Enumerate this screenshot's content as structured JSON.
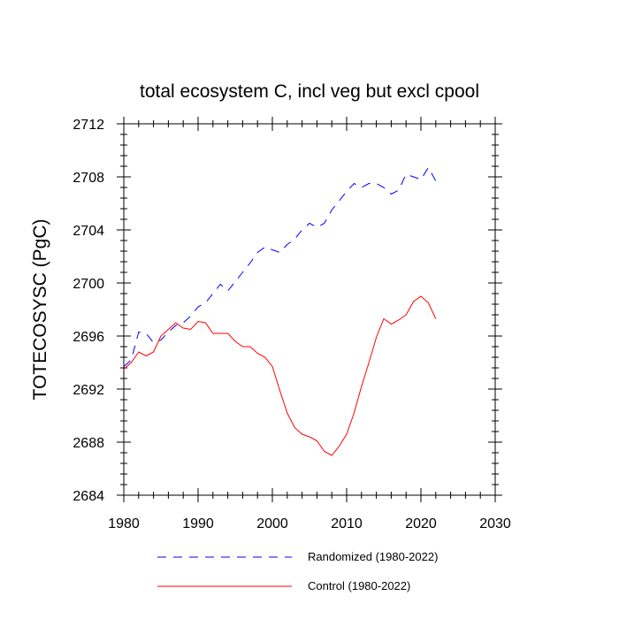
{
  "chart_data": {
    "type": "line",
    "title": "total ecosystem C, incl veg but excl cpool",
    "xlabel": "",
    "ylabel": "TOTECOSYSC  (PgC)",
    "xlim": [
      1980,
      2030
    ],
    "ylim": [
      2684,
      2712
    ],
    "xticks": [
      1980,
      1990,
      2000,
      2010,
      2020,
      2030
    ],
    "yticks": [
      2684,
      2688,
      2692,
      2696,
      2700,
      2704,
      2708,
      2712
    ],
    "xtick_labels": [
      "1980",
      "1990",
      "2000",
      "2010",
      "2020",
      "2030"
    ],
    "ytick_labels": [
      "2684",
      "2688",
      "2692",
      "2696",
      "2700",
      "2704",
      "2708",
      "2712"
    ],
    "x": [
      1980,
      1981,
      1982,
      1983,
      1984,
      1985,
      1986,
      1987,
      1988,
      1989,
      1990,
      1991,
      1992,
      1993,
      1994,
      1995,
      1996,
      1997,
      1998,
      1999,
      2000,
      2001,
      2002,
      2003,
      2004,
      2005,
      2006,
      2007,
      2008,
      2009,
      2010,
      2011,
      2012,
      2013,
      2014,
      2015,
      2016,
      2017,
      2018,
      2019,
      2020,
      2021,
      2022
    ],
    "series": [
      {
        "name": "Randomized (1980-2022)",
        "color": "#0000ff",
        "dash": "dashed",
        "values": [
          2693.7,
          2694.2,
          2696.3,
          2696.2,
          2695.5,
          2695.7,
          2696.3,
          2696.8,
          2697.0,
          2697.5,
          2698.2,
          2698.5,
          2699.2,
          2699.9,
          2699.4,
          2700.1,
          2700.8,
          2701.5,
          2702.3,
          2702.7,
          2702.5,
          2702.3,
          2702.9,
          2703.3,
          2704.0,
          2704.5,
          2704.2,
          2704.5,
          2705.5,
          2706.2,
          2706.9,
          2707.5,
          2707.2,
          2707.5,
          2707.5,
          2707.2,
          2706.7,
          2707.0,
          2708.2,
          2708.0,
          2707.8,
          2708.7,
          2707.7
        ]
      },
      {
        "name": "Control (1980-2022)",
        "color": "#ff0000",
        "dash": "solid",
        "values": [
          2693.5,
          2694.0,
          2694.8,
          2694.5,
          2694.8,
          2696.0,
          2696.5,
          2697.0,
          2696.6,
          2696.5,
          2697.1,
          2697.0,
          2696.2,
          2696.2,
          2696.2,
          2695.6,
          2695.2,
          2695.2,
          2694.7,
          2694.4,
          2693.7,
          2691.9,
          2690.2,
          2689.1,
          2688.6,
          2688.4,
          2688.1,
          2687.3,
          2687.0,
          2687.7,
          2688.6,
          2690.2,
          2692.2,
          2694.0,
          2695.9,
          2697.3,
          2696.9,
          2697.2,
          2697.6,
          2698.6,
          2699.0,
          2698.5,
          2697.3
        ]
      }
    ],
    "legend_position": "bottom"
  }
}
